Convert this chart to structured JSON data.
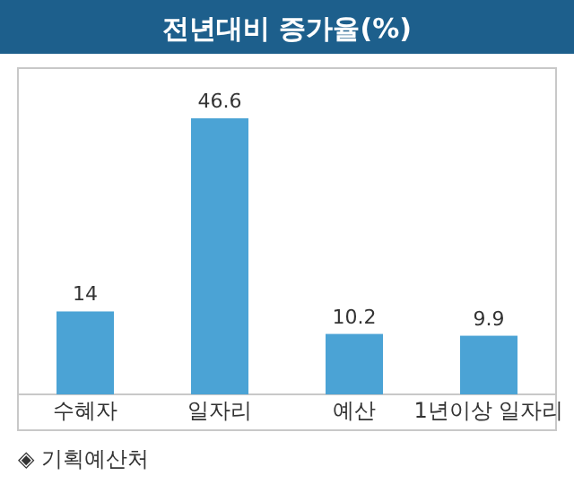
{
  "chart_data": {
    "type": "bar",
    "title": "전년대비 증가율(%)",
    "categories": [
      "수혜자",
      "일자리",
      "예산",
      "1년이상 일자리"
    ],
    "values": [
      14,
      46.6,
      10.2,
      9.9
    ],
    "color": "#4ba3d5",
    "data_labels": true,
    "annotations": [
      "◈ 기획예산처"
    ]
  }
}
